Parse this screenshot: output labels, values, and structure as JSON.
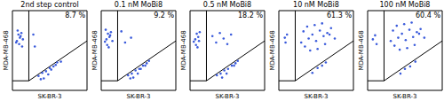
{
  "chart_data": [
    {
      "type": "scatter",
      "title": "2nd step control",
      "x_label": "SK-BR-3",
      "y_label": "MDA-MB-468",
      "annotation": "8.7 %",
      "xlim": [
        0,
        100
      ],
      "ylim": [
        0,
        100
      ],
      "tick_labels": false,
      "color": "#3b5bdb",
      "x": [
        6,
        8,
        10,
        12,
        9,
        7,
        11,
        14,
        13,
        5,
        35,
        40,
        45,
        50,
        55,
        60,
        42,
        48,
        52,
        58,
        65,
        38,
        30,
        28
      ],
      "y": [
        62,
        70,
        66,
        72,
        58,
        75,
        68,
        64,
        55,
        60,
        18,
        22,
        24,
        28,
        30,
        35,
        15,
        20,
        26,
        32,
        36,
        14,
        55,
        70
      ]
    },
    {
      "type": "scatter",
      "title": "0.1 nM MoBi8",
      "x_label": "SK-BR-3",
      "y_label": "MDA-MB-468",
      "annotation": "9.2 %",
      "xlim": [
        0,
        100
      ],
      "ylim": [
        0,
        100
      ],
      "tick_labels": false,
      "color": "#3b5bdb",
      "x": [
        7,
        9,
        11,
        13,
        8,
        6,
        12,
        15,
        10,
        5,
        36,
        41,
        46,
        51,
        56,
        61,
        43,
        49,
        53,
        59,
        64,
        39,
        32,
        40,
        27
      ],
      "y": [
        64,
        71,
        67,
        73,
        57,
        76,
        69,
        62,
        54,
        61,
        19,
        21,
        25,
        27,
        31,
        34,
        16,
        21,
        27,
        31,
        37,
        15,
        60,
        66,
        74
      ]
    },
    {
      "type": "scatter",
      "title": "0.5 nM MoBi8",
      "x_label": "SK-BR-3",
      "y_label": "MDA-MB-468",
      "annotation": "18.2 %",
      "xlim": [
        0,
        100
      ],
      "ylim": [
        0,
        100
      ],
      "tick_labels": false,
      "color": "#3b5bdb",
      "x": [
        7,
        9,
        11,
        13,
        8,
        12,
        10,
        5,
        36,
        41,
        46,
        51,
        56,
        61,
        43,
        49,
        59,
        64,
        35,
        45,
        40,
        50,
        30,
        55
      ],
      "y": [
        64,
        71,
        67,
        73,
        57,
        62,
        54,
        61,
        19,
        21,
        25,
        27,
        31,
        34,
        16,
        21,
        31,
        37,
        60,
        65,
        72,
        58,
        68,
        70
      ]
    },
    {
      "type": "scatter",
      "title": "10 nM MoBi8",
      "x_label": "SK-BR-3",
      "y_label": "MDA-MB-468",
      "annotation": "61.3 %",
      "xlim": [
        0,
        100
      ],
      "ylim": [
        0,
        100
      ],
      "tick_labels": false,
      "color": "#3b5bdb",
      "x": [
        8,
        11,
        9,
        45,
        52,
        58,
        63,
        30,
        35,
        40,
        45,
        50,
        55,
        60,
        65,
        70,
        38,
        48,
        58,
        68,
        42,
        52,
        33,
        62,
        75
      ],
      "y": [
        66,
        70,
        60,
        22,
        28,
        31,
        35,
        60,
        55,
        65,
        70,
        62,
        75,
        68,
        72,
        78,
        80,
        82,
        84,
        70,
        50,
        52,
        74,
        58,
        65
      ]
    },
    {
      "type": "scatter",
      "title": "100 nM MoBi8",
      "x_label": "SK-BR-3",
      "y_label": "MDA-MB-468",
      "annotation": "60.4 %",
      "xlim": [
        0,
        100
      ],
      "ylim": [
        0,
        100
      ],
      "tick_labels": false,
      "color": "#3b5bdb",
      "x": [
        7,
        10,
        12,
        44,
        50,
        57,
        64,
        31,
        36,
        41,
        46,
        51,
        56,
        61,
        66,
        71,
        39,
        49,
        59,
        69,
        43,
        53,
        34,
        63,
        76
      ],
      "y": [
        64,
        69,
        58,
        21,
        27,
        30,
        36,
        62,
        56,
        66,
        71,
        63,
        76,
        67,
        73,
        77,
        81,
        83,
        85,
        71,
        51,
        53,
        75,
        57,
        66
      ]
    }
  ]
}
